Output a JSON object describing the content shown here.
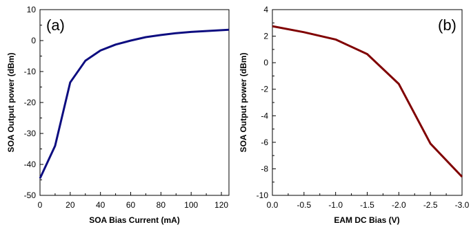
{
  "chart_data": [
    {
      "type": "line",
      "panel_label": "(a)",
      "xlabel": "SOA Bias Current (mA)",
      "ylabel": "SOA Output power (dBm)",
      "xlim": [
        0,
        125
      ],
      "ylim": [
        -50,
        10
      ],
      "xticks": [
        0,
        20,
        40,
        60,
        80,
        100,
        120
      ],
      "yticks": [
        -50,
        -40,
        -30,
        -20,
        -10,
        0,
        10
      ],
      "grid": false,
      "series": [
        {
          "color": "#0d0d80",
          "x": [
            0,
            10,
            20,
            30,
            40,
            50,
            60,
            70,
            80,
            90,
            100,
            110,
            125
          ],
          "y": [
            -44.5,
            -34,
            -13.5,
            -6.5,
            -3.2,
            -1.3,
            0,
            1.1,
            1.8,
            2.4,
            2.8,
            3.1,
            3.5
          ]
        }
      ]
    },
    {
      "type": "line",
      "panel_label": "(b)",
      "xlabel": "EAM DC Bias (V)",
      "ylabel": "SOA Output power (dBm)",
      "xlim": [
        0,
        -3.0
      ],
      "ylim": [
        -10,
        4
      ],
      "xticks": [
        "0.0",
        "-0.5",
        "-1.0",
        "-1.5",
        "-2.0",
        "-2.5",
        "-3.0"
      ],
      "yticks": [
        -10,
        -8,
        -6,
        -4,
        -2,
        0,
        2,
        4
      ],
      "grid": false,
      "series": [
        {
          "color": "#800000",
          "x": [
            0.0,
            -0.5,
            -1.0,
            -1.5,
            -2.0,
            -2.5,
            -3.0
          ],
          "y": [
            2.75,
            2.3,
            1.75,
            0.65,
            -1.6,
            -6.1,
            -8.6
          ]
        }
      ]
    }
  ]
}
